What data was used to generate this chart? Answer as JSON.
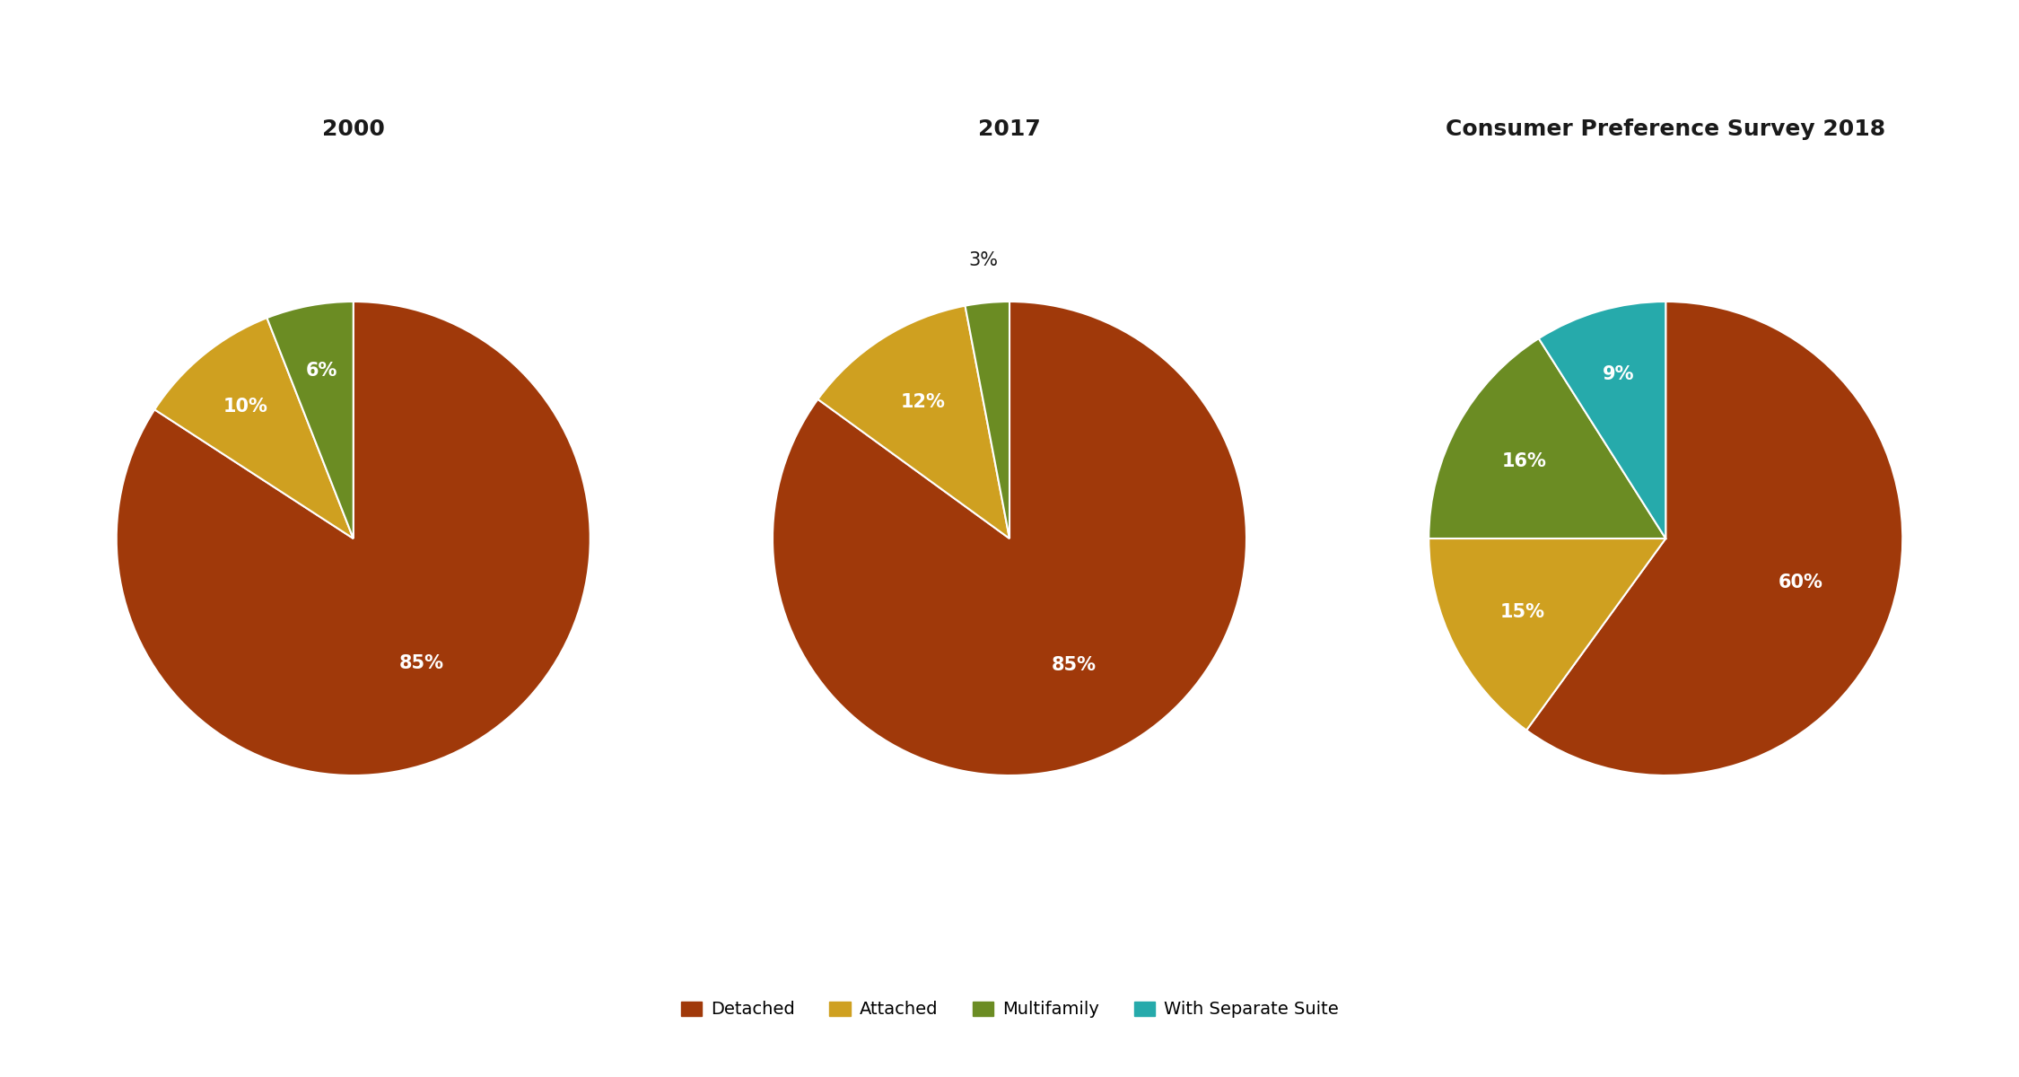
{
  "charts": [
    {
      "title": "2000",
      "values": [
        85,
        10,
        6
      ],
      "labels": [
        "85%",
        "10%",
        "6%"
      ],
      "colors": [
        "#A0390A",
        "#CFA020",
        "#6B8C23"
      ],
      "label_outside": [
        false,
        false,
        false
      ]
    },
    {
      "title": "2017",
      "values": [
        85,
        12,
        3
      ],
      "labels": [
        "85%",
        "12%",
        "3%"
      ],
      "colors": [
        "#A0390A",
        "#CFA020",
        "#6B8C23"
      ],
      "label_outside": [
        false,
        false,
        true
      ]
    },
    {
      "title": "Consumer Preference Survey 2018",
      "values": [
        60,
        15,
        16,
        9
      ],
      "labels": [
        "60%",
        "15%",
        "16%",
        "9%"
      ],
      "colors": [
        "#A0390A",
        "#CFA020",
        "#6B8C23",
        "#26AAAB"
      ],
      "label_outside": [
        false,
        false,
        false,
        false
      ]
    }
  ],
  "legend_items": [
    {
      "label": "Detached",
      "color": "#A0390A"
    },
    {
      "label": "Attached",
      "color": "#CFA020"
    },
    {
      "label": "Multifamily",
      "color": "#6B8C23"
    },
    {
      "label": "With Separate Suite",
      "color": "#26AAAB"
    }
  ],
  "background_color": "#FFFFFF",
  "text_color": "#1a1a1a",
  "label_fontsize": 15,
  "title_fontsize": 18,
  "label_color_white": "#FFFFFF",
  "label_color_dark": "#1a1a1a",
  "edge_color": "#FFFFFF",
  "edge_width": 1.5
}
